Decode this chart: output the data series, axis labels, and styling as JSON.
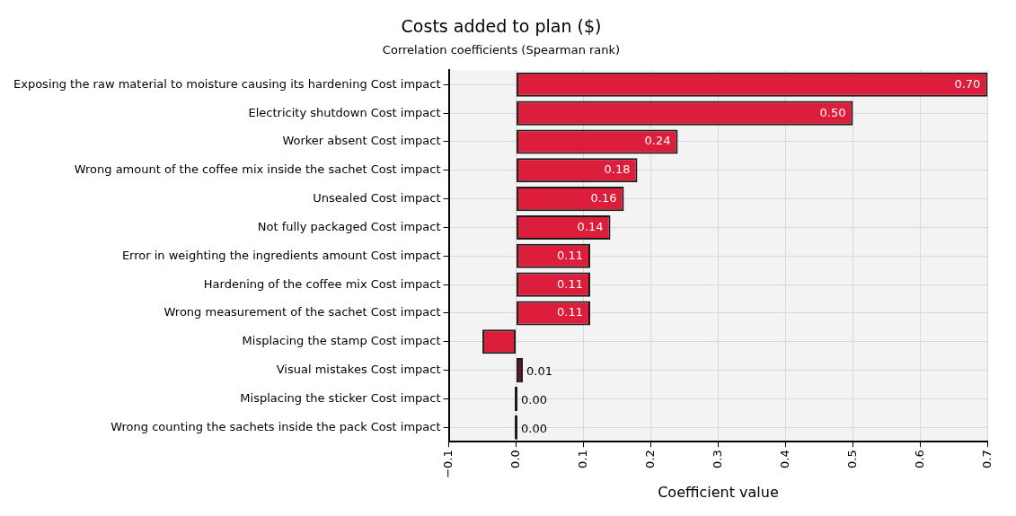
{
  "chart_data": {
    "type": "bar",
    "orientation": "horizontal",
    "title": "Costs added to plan ($)",
    "subtitle": "Correlation coefficients (Spearman rank)",
    "xlabel": "Coefficient value",
    "categories": [
      "Exposing the raw material to moisture causing its hardening Cost impact",
      "Electricity shutdown Cost impact",
      "Worker absent Cost impact",
      "Wrong amount of the coffee mix inside the sachet Cost impact",
      "Unsealed Cost impact",
      "Not fully packaged Cost impact",
      "Error in weighting the ingredients amount Cost impact",
      "Hardening of the coffee mix Cost impact",
      "Wrong measurement of the sachet Cost impact",
      "Misplacing the stamp Cost impact",
      "Visual mistakes Cost impact",
      "Misplacing the sticker Cost impact",
      "Wrong counting the sachets inside the pack Cost impact"
    ],
    "values": [
      0.7,
      0.5,
      0.24,
      0.18,
      0.16,
      0.14,
      0.11,
      0.11,
      0.11,
      -0.05,
      0.01,
      0.0,
      0.0
    ],
    "value_labels": [
      "0.70",
      "0.50",
      "0.24",
      "0.18",
      "0.16",
      "0.14",
      "0.11",
      "0.11",
      "0.11",
      null,
      "0.01",
      "0.00",
      "0.00"
    ],
    "colors": [
      "#dc1e3c",
      "#dc1e3c",
      "#dc1e3c",
      "#dc1e3c",
      "#dc1e3c",
      "#dc1e3c",
      "#dc1e3c",
      "#dc1e3c",
      "#dc1e3c",
      "#dc1e3c",
      "#6b1020",
      "#111111",
      "#111111"
    ],
    "xlim": [
      -0.1,
      0.7
    ],
    "xticks": [
      {
        "value": -0.1,
        "label": "−0.1"
      },
      {
        "value": 0,
        "label": "0.0"
      },
      {
        "value": 0.1,
        "label": "0.1"
      },
      {
        "value": 0.2,
        "label": "0.2"
      },
      {
        "value": 0.3,
        "label": "0.3"
      },
      {
        "value": 0.4,
        "label": "0.4"
      },
      {
        "value": 0.5,
        "label": "0.5"
      },
      {
        "value": 0.6,
        "label": "0.6"
      },
      {
        "value": 0.7,
        "label": "0.7"
      }
    ],
    "grid": true,
    "legend": false
  }
}
